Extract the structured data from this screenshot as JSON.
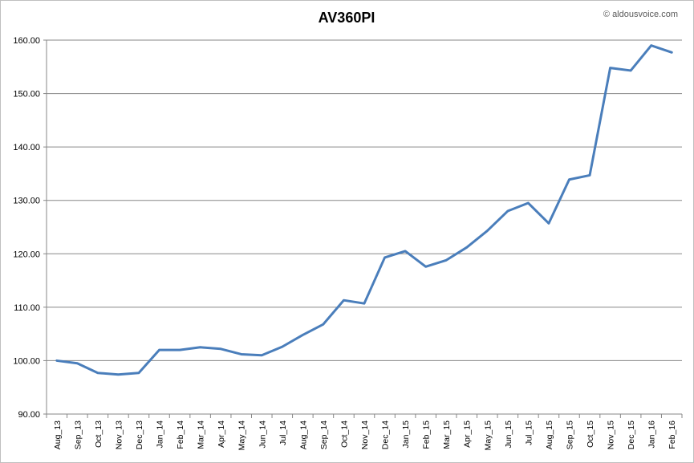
{
  "chart_data": {
    "type": "line",
    "title": "AV360PI",
    "credit": "© aldousvoice.com",
    "xlabel": "",
    "ylabel": "",
    "ylim": [
      90,
      160
    ],
    "ytick_step": 10,
    "ytick_labels": [
      "90.00",
      "100.00",
      "110.00",
      "120.00",
      "130.00",
      "140.00",
      "150.00",
      "160.00"
    ],
    "grid": true,
    "legend": "none",
    "line_color": "#4a7ebb",
    "categories": [
      "Aug_13",
      "Sep_13",
      "Oct_13",
      "Nov_13",
      "Dec_13",
      "Jan_14",
      "Feb_14",
      "Mar_14",
      "Apr_14",
      "May_14",
      "Jun_14",
      "Jul_14",
      "Aug_14",
      "Sep_14",
      "Oct_14",
      "Nov_14",
      "Dec_14",
      "Jan_15",
      "Feb_15",
      "Mar_15",
      "Apr_15",
      "May_15",
      "Jun_15",
      "Jul_15",
      "Aug_15",
      "Sep_15",
      "Oct_15",
      "Nov_15",
      "Dec_15",
      "Jan_16",
      "Feb_16"
    ],
    "series": [
      {
        "values": [
          100.0,
          99.5,
          97.7,
          97.4,
          97.7,
          102.0,
          102.0,
          102.5,
          102.2,
          101.2,
          101.0,
          102.6,
          104.8,
          106.8,
          111.3,
          110.7,
          119.3,
          120.5,
          117.6,
          118.8,
          121.2,
          124.3,
          128.0,
          129.5,
          125.7,
          133.9,
          134.7,
          154.8,
          154.3,
          159.0,
          157.7
        ]
      }
    ]
  }
}
